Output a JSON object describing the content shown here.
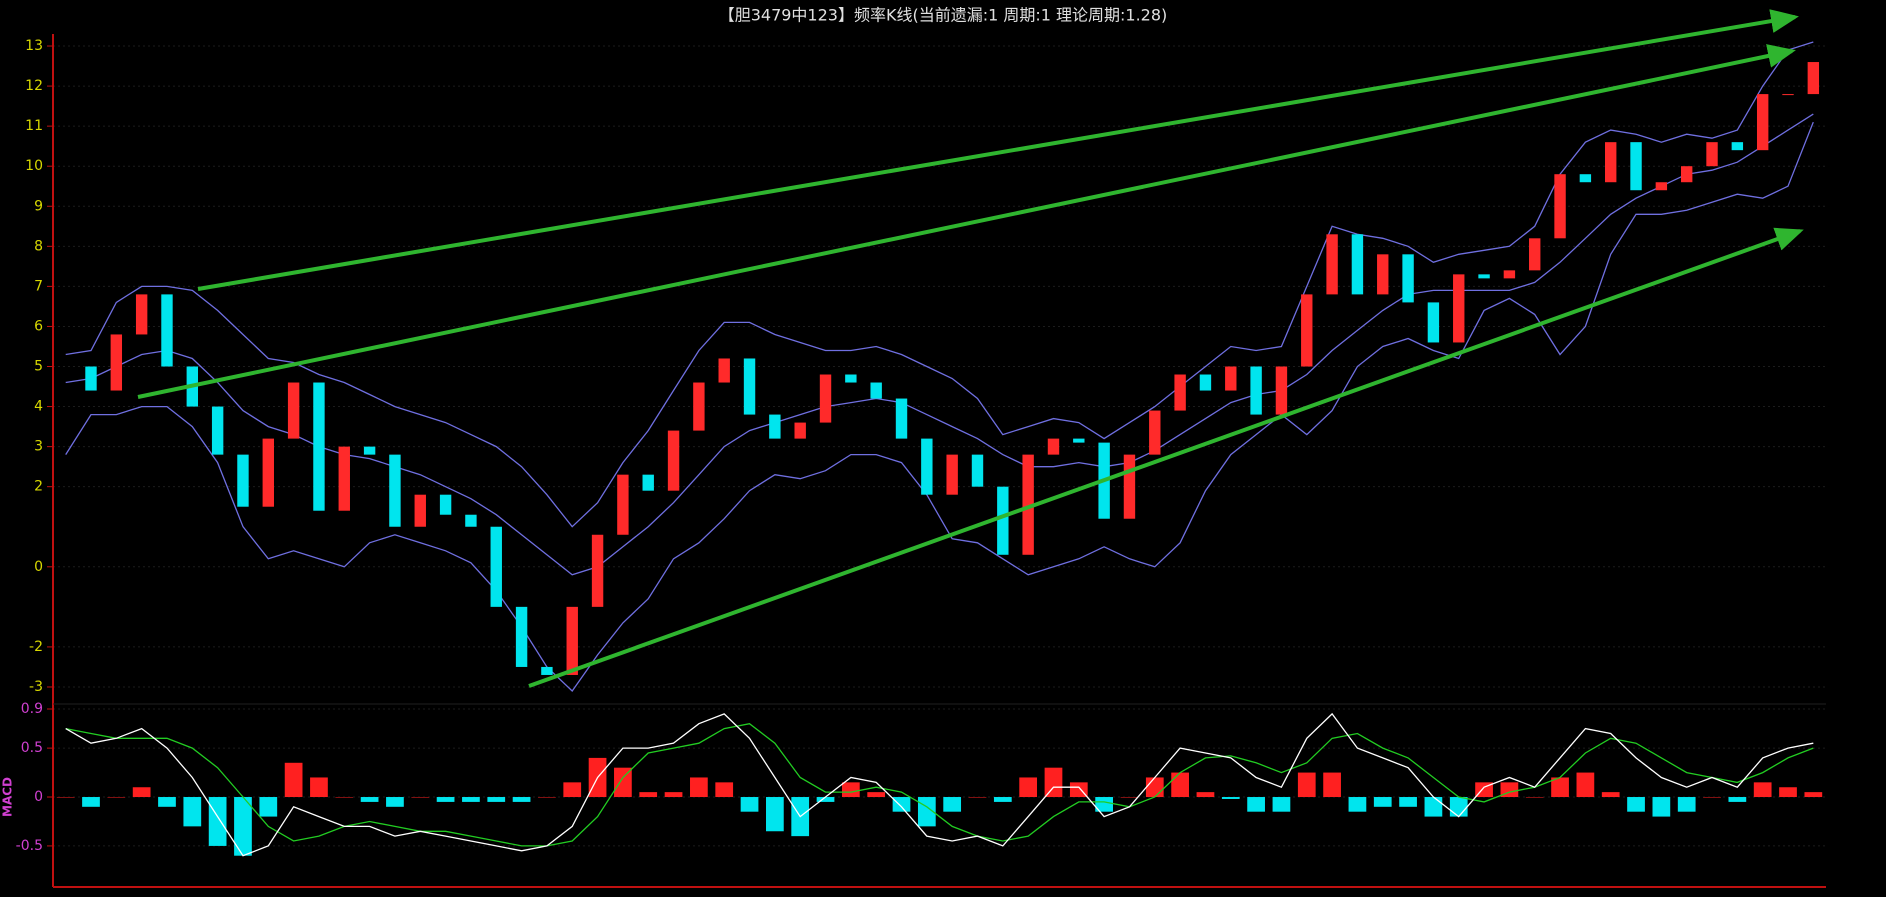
{
  "chart_data": [
    {
      "type": "candlestick",
      "title": "【胆3479中123】频率K线(当前遗漏:1 周期:1 理论周期:1.28)",
      "values": [
        5,
        4.4,
        5.8,
        6.8,
        5,
        4,
        2.8,
        1.5,
        3.2,
        4.6,
        1.4,
        3,
        2.8,
        1,
        1.8,
        1.3,
        1,
        -1,
        -2.5,
        -2.7,
        -1,
        0.8,
        2.3,
        1.9,
        3.4,
        4.6,
        5.2,
        3.8,
        3.2,
        3.6,
        4.8,
        4.6,
        4.2,
        3.2,
        1.8,
        2.8,
        2,
        0.3,
        2.8,
        3.2,
        3.1,
        1.2,
        2.8,
        3.9,
        4.8,
        4.4,
        5,
        3.8,
        5,
        6.8,
        8.3,
        6.8,
        7.8,
        6.6,
        5.6,
        7.3,
        7.2,
        7.4,
        8.2,
        9.8,
        9.6,
        10.6,
        9.4,
        9.6,
        10,
        10.6,
        10.4,
        11.8,
        11.8,
        12.6
      ],
      "bands": {
        "upper": [
          5.3,
          5.4,
          6.6,
          7,
          7,
          6.9,
          6.4,
          5.8,
          5.2,
          5.1,
          4.8,
          4.6,
          4.3,
          4.0,
          3.8,
          3.6,
          3.3,
          3.0,
          2.5,
          1.8,
          1.0,
          1.6,
          2.6,
          3.4,
          4.4,
          5.4,
          6.1,
          6.1,
          5.8,
          5.6,
          5.4,
          5.4,
          5.5,
          5.3,
          5.0,
          4.7,
          4.2,
          3.3,
          3.5,
          3.7,
          3.6,
          3.2,
          3.6,
          4.0,
          4.5,
          5.0,
          5.5,
          5.4,
          5.5,
          7,
          8.5,
          8.3,
          8.2,
          8.0,
          7.6,
          7.8,
          7.9,
          8.0,
          8.5,
          9.8,
          10.6,
          10.9,
          10.8,
          10.6,
          10.8,
          10.7,
          10.9,
          12,
          12.9,
          13.1
        ],
        "middle": [
          4.6,
          4.7,
          5,
          5.3,
          5.4,
          5.2,
          4.6,
          3.9,
          3.5,
          3.3,
          3.0,
          2.8,
          2.7,
          2.5,
          2.3,
          2.0,
          1.7,
          1.3,
          0.8,
          0.3,
          -0.2,
          0,
          0.5,
          1,
          1.6,
          2.3,
          3,
          3.4,
          3.6,
          3.8,
          4,
          4.1,
          4.2,
          4.1,
          3.8,
          3.5,
          3.2,
          2.8,
          2.5,
          2.5,
          2.6,
          2.5,
          2.6,
          2.9,
          3.3,
          3.7,
          4.1,
          4.3,
          4.4,
          4.8,
          5.4,
          5.9,
          6.4,
          6.8,
          6.9,
          6.9,
          6.9,
          6.9,
          7.1,
          7.6,
          8.2,
          8.8,
          9.2,
          9.5,
          9.8,
          9.9,
          10.1,
          10.5,
          10.9,
          11.3
        ],
        "lower": [
          2.8,
          3.8,
          3.8,
          4.0,
          4.0,
          3.5,
          2.6,
          1.0,
          0.2,
          0.4,
          0.2,
          0.0,
          0.6,
          0.8,
          0.6,
          0.4,
          0.1,
          -0.6,
          -1.5,
          -2.5,
          -3.1,
          -2.2,
          -1.4,
          -0.8,
          0.2,
          0.6,
          1.2,
          1.9,
          2.3,
          2.2,
          2.4,
          2.8,
          2.8,
          2.6,
          1.8,
          0.7,
          0.6,
          0.2,
          -0.2,
          0.0,
          0.2,
          0.5,
          0.2,
          0.0,
          0.6,
          1.9,
          2.8,
          3.3,
          3.8,
          3.3,
          3.9,
          5.0,
          5.5,
          5.7,
          5.4,
          5.2,
          6.4,
          6.7,
          6.3,
          5.3,
          6.0,
          7.8,
          8.8,
          8.8,
          8.9,
          9.1,
          9.3,
          9.2,
          9.5,
          11.1
        ]
      },
      "up_color": "#ff2a2a",
      "down_color": "#00e5ee",
      "band_color": "#6f6fe0",
      "tick_color": "#d8d800",
      "ylim": [
        -3.3,
        13.3
      ],
      "yticks": [
        13,
        12,
        11,
        10,
        9,
        8,
        7,
        6,
        5,
        4,
        3,
        2,
        0,
        -2,
        -3
      ]
    },
    {
      "type": "macd",
      "ylabel": "MACD",
      "dif": [
        0.7,
        0.55,
        0.6,
        0.7,
        0.5,
        0.2,
        -0.2,
        -0.6,
        -0.5,
        -0.1,
        -0.2,
        -0.3,
        -0.3,
        -0.4,
        -0.35,
        -0.4,
        -0.45,
        -0.5,
        -0.55,
        -0.5,
        -0.3,
        0.2,
        0.5,
        0.5,
        0.55,
        0.75,
        0.85,
        0.6,
        0.2,
        -0.2,
        0,
        0.2,
        0.15,
        -0.1,
        -0.4,
        -0.45,
        -0.4,
        -0.5,
        -0.2,
        0.1,
        0.1,
        -0.2,
        -0.1,
        0.2,
        0.5,
        0.45,
        0.4,
        0.2,
        0.1,
        0.6,
        0.85,
        0.5,
        0.4,
        0.3,
        0,
        -0.2,
        0.1,
        0.2,
        0.1,
        0.4,
        0.7,
        0.65,
        0.4,
        0.2,
        0.1,
        0.2,
        0.1,
        0.4,
        0.5,
        0.55
      ],
      "dea": [
        0.7,
        0.65,
        0.6,
        0.6,
        0.6,
        0.5,
        0.3,
        0,
        -0.3,
        -0.45,
        -0.4,
        -0.3,
        -0.25,
        -0.3,
        -0.35,
        -0.35,
        -0.4,
        -0.45,
        -0.5,
        -0.5,
        -0.45,
        -0.2,
        0.2,
        0.45,
        0.5,
        0.55,
        0.7,
        0.75,
        0.55,
        0.2,
        0.05,
        0.05,
        0.1,
        0.05,
        -0.1,
        -0.3,
        -0.4,
        -0.45,
        -0.4,
        -0.2,
        -0.05,
        -0.05,
        -0.1,
        0,
        0.25,
        0.4,
        0.42,
        0.35,
        0.25,
        0.35,
        0.6,
        0.65,
        0.5,
        0.4,
        0.2,
        0,
        -0.05,
        0.05,
        0.1,
        0.2,
        0.45,
        0.6,
        0.55,
        0.4,
        0.25,
        0.2,
        0.15,
        0.25,
        0.4,
        0.5
      ],
      "histogram": [
        0,
        -0.1,
        0,
        0.1,
        -0.1,
        -0.3,
        -0.5,
        -0.6,
        -0.2,
        0.35,
        0.2,
        0,
        -0.05,
        -0.1,
        0,
        -0.05,
        -0.05,
        -0.05,
        -0.05,
        0,
        0.15,
        0.4,
        0.3,
        0.05,
        0.05,
        0.2,
        0.15,
        -0.15,
        -0.35,
        -0.4,
        -0.05,
        0.15,
        0.05,
        -0.15,
        -0.3,
        -0.15,
        0,
        -0.05,
        0.2,
        0.3,
        0.15,
        -0.15,
        0,
        0.2,
        0.25,
        0.05,
        -0.02,
        -0.15,
        -0.15,
        0.25,
        0.25,
        -0.15,
        -0.1,
        -0.1,
        -0.2,
        -0.2,
        0.15,
        0.15,
        0,
        0.2,
        0.25,
        0.05,
        -0.15,
        -0.2,
        -0.15,
        0,
        -0.05,
        0.15,
        0.1,
        0.05
      ],
      "dif_color": "#ffffff",
      "dea_color": "#22cc22",
      "up_color": "#ff2020",
      "down_color": "#00e5ee",
      "tick_color": "#d040d0",
      "ylim": [
        -0.92,
        0.9
      ],
      "yticks": [
        0.9,
        0.5,
        0,
        -0.5
      ]
    }
  ]
}
